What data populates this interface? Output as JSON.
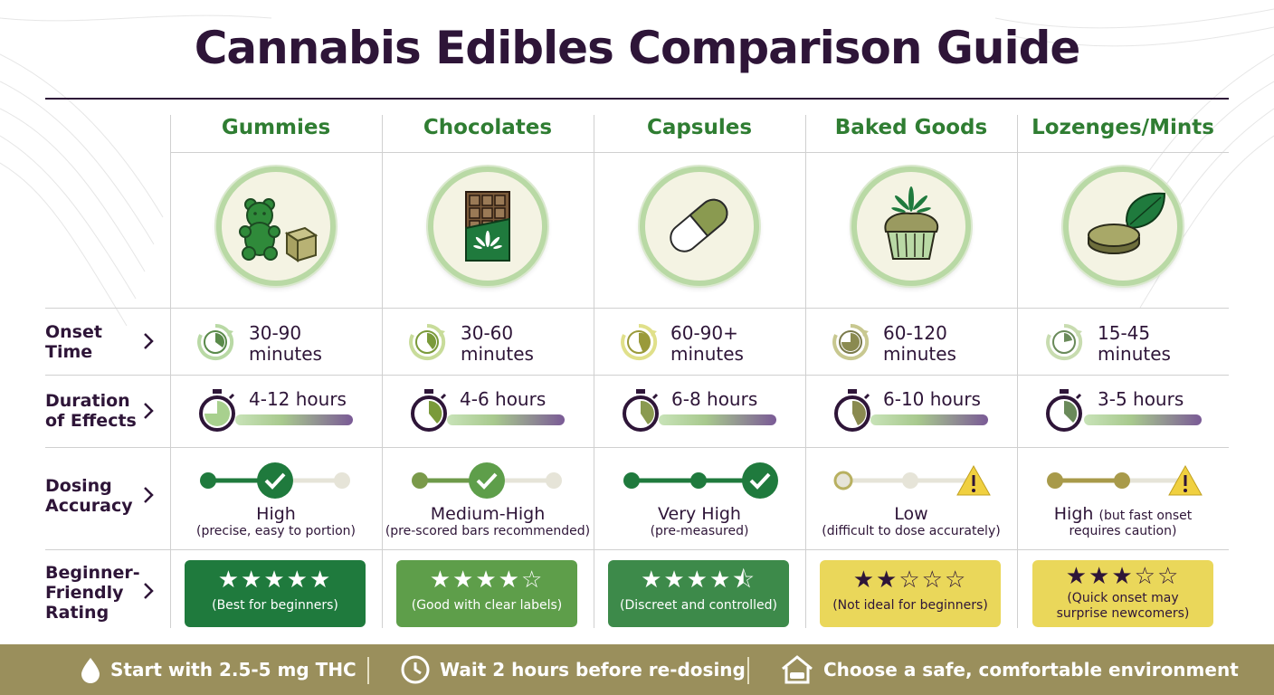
{
  "title": "Cannabis Edibles Comparison Guide",
  "row_labels": {
    "onset": "Onset Time",
    "duration": "Duration of Effects",
    "dosing": "Dosing Accuracy",
    "beginner": "Beginner-Friendly Rating"
  },
  "columns": [
    {
      "name": "Gummies",
      "icon": "gummy-bear-icon",
      "onset": "30-90 minutes",
      "duration": "4-12 hours",
      "dosing_level": "High",
      "dosing_note": "(precise, easy to portion)",
      "stars_text": "★★★★★",
      "rating": 5,
      "rating_note": "(Best for beginners)"
    },
    {
      "name": "Chocolates",
      "icon": "chocolate-bar-icon",
      "onset": "30-60 minutes",
      "duration": "4-6 hours",
      "dosing_level": "Medium-High",
      "dosing_note": "(pre-scored bars recommended)",
      "stars_text": "★★★★☆",
      "rating": 4,
      "rating_note": "(Good with clear labels)"
    },
    {
      "name": "Capsules",
      "icon": "capsule-icon",
      "onset": "60-90+ minutes",
      "duration": "6-8 hours",
      "dosing_level": "Very High",
      "dosing_note": "(pre-measured)",
      "stars_text": "★★★★⯪",
      "rating": 4.5,
      "rating_note": "(Discreet and controlled)"
    },
    {
      "name": "Baked Goods",
      "icon": "cupcake-icon",
      "onset": "60-120 minutes",
      "duration": "6-10 hours",
      "dosing_level": "Low",
      "dosing_note": "(difficult to dose accurately)",
      "stars_text": "★★☆☆☆",
      "rating": 2,
      "rating_note": "(Not ideal for beginners)"
    },
    {
      "name": "Lozenges/Mints",
      "icon": "mint-lozenge-icon",
      "onset": "15-45 minutes",
      "duration": "3-5 hours",
      "dosing_level": "High",
      "dosing_level_extra": "(but fast onset",
      "dosing_note": "requires caution)",
      "stars_text": "★★★☆☆",
      "rating": 3,
      "rating_note": "(Quick onset may surprise newcomers)"
    }
  ],
  "footer": {
    "tip1": "Start with 2.5-5 mg THC",
    "tip2": "Wait 2 hours before re-dosing",
    "tip3": "Choose a safe, comfortable environment"
  },
  "colors": {
    "title": "#2e1538",
    "column_title": "#2f7d32",
    "footer_bg": "#9a8f5c",
    "badge_green_dark": "#1f7a3d",
    "badge_yellow": "#ead75a"
  }
}
